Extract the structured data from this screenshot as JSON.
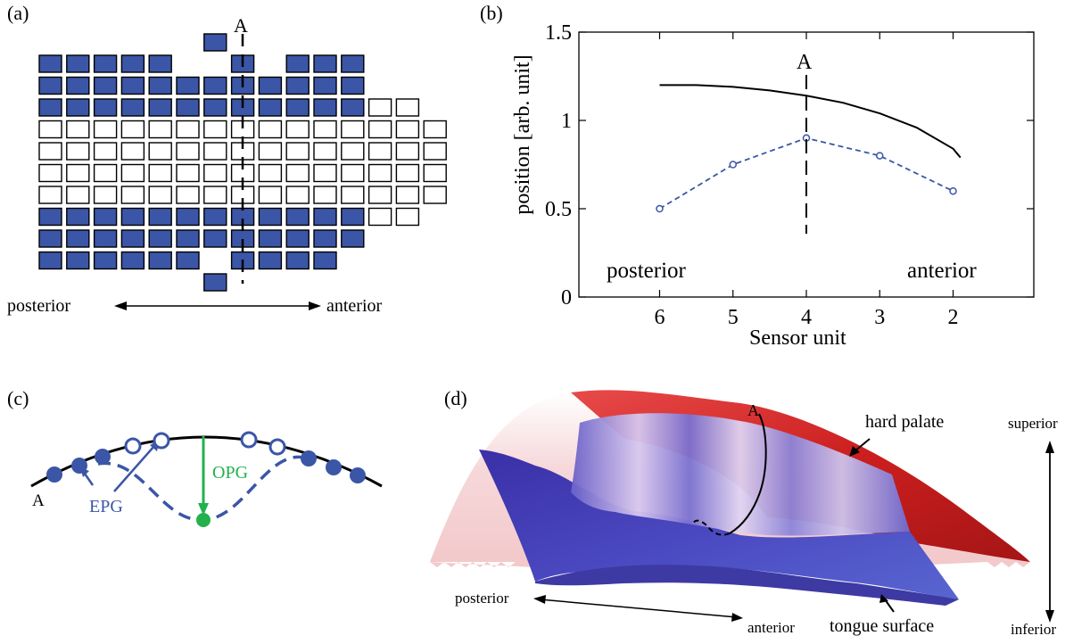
{
  "panel_a": {
    "label": "(a)",
    "marker": "A",
    "posterior": "posterior",
    "anterior": "anterior",
    "grid_rows": [
      "XXXXX..X.XXX",
      "XXXXXXXXXXXX",
      "XXXXXXXXXXXXOO",
      "OOOOOOOOOOOOOOO",
      "OOOOOOOOOOOOOOO",
      "OOOOOOOOOOOOOOO",
      "OOOOOOOOOOOOOOO",
      "XXXXXXXXXXXXOO",
      "XXXXXXXXXXXX",
      "XXXXXX.XXXX"
    ],
    "colors": {
      "filled": "#3b56a6",
      "outline": "#000000"
    }
  },
  "panel_b": {
    "label": "(b)",
    "marker": "A",
    "posterior": "posterior",
    "anterior": "anterior"
  },
  "panel_c": {
    "label": "(c)",
    "marker": "A",
    "epg": "EPG",
    "opg": "OPG",
    "colors": {
      "epg": "#3b56a6",
      "opg": "#22b14c"
    }
  },
  "panel_d": {
    "label": "(d)",
    "marker": "A",
    "hard_palate": "hard palate",
    "tongue_surface": "tongue surface",
    "superior": "superior",
    "inferior": "inferior",
    "posterior": "posterior",
    "anterior": "anterior",
    "colors": {
      "palate": "#cc1f1f",
      "tongue": "#3b3fb0",
      "pink": "#f3c9cb"
    }
  },
  "chart_data": {
    "type": "line",
    "xlabel": "Sensor unit",
    "ylabel": "position [arb. unit]",
    "x_ticks": [
      "6",
      "5",
      "4",
      "3",
      "2"
    ],
    "y_ticks": [
      "0",
      "0.5",
      "1",
      "1.5"
    ],
    "ylim": [
      0,
      1.5
    ],
    "x_reversed": true,
    "series": [
      {
        "style": "solid",
        "color": "#000000",
        "x": [
          6,
          5.5,
          5,
          4.5,
          4,
          3.5,
          3,
          2.5,
          2,
          1.9
        ],
        "y": [
          1.2,
          1.2,
          1.19,
          1.17,
          1.14,
          1.1,
          1.04,
          0.96,
          0.84,
          0.79
        ]
      },
      {
        "style": "dashed",
        "marker": "circle",
        "color": "#3b56a6",
        "x": [
          6,
          5,
          4,
          3,
          2
        ],
        "y": [
          0.5,
          0.75,
          0.9,
          0.8,
          0.6
        ]
      }
    ]
  }
}
